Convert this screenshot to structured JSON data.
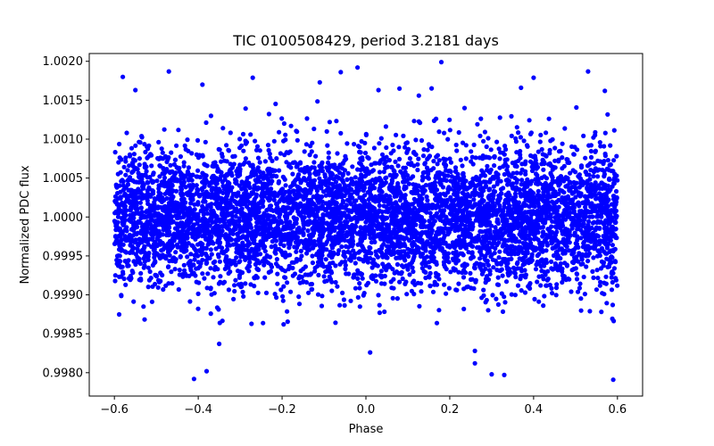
{
  "chart_data": {
    "type": "scatter",
    "title": "TIC 0100508429, period 3.2181 days",
    "xlabel": "Phase",
    "ylabel": "Normalized PDC flux",
    "xlim": [
      -0.66,
      0.66
    ],
    "ylim": [
      0.9977,
      1.0021
    ],
    "x_ticks": [
      -0.6,
      -0.4,
      -0.2,
      0.0,
      0.2,
      0.4,
      0.6
    ],
    "x_tick_labels": [
      "−0.6",
      "−0.4",
      "−0.2",
      "0.0",
      "0.2",
      "0.4",
      "0.6"
    ],
    "y_ticks": [
      0.998,
      0.9985,
      0.999,
      0.9995,
      1.0,
      1.0005,
      1.001,
      1.0015,
      1.002
    ],
    "y_tick_labels": [
      "0.9980",
      "0.9985",
      "0.9990",
      "0.9995",
      "1.0000",
      "1.0005",
      "1.0010",
      "1.0015",
      "1.0020"
    ],
    "grid": false,
    "marker_color": "#0000ff",
    "series": [
      {
        "name": "PDC flux",
        "phase_range": [
          -0.6,
          0.6
        ],
        "n_points": 6000,
        "center_flux": 1.0,
        "sigma_flux": 0.00045,
        "outliers": [
          {
            "x": -0.41,
            "y": 0.99792
          },
          {
            "x": -0.38,
            "y": 0.99802
          },
          {
            "x": 0.01,
            "y": 0.99826
          },
          {
            "x": 0.26,
            "y": 0.99828
          },
          {
            "x": 0.26,
            "y": 0.99812
          },
          {
            "x": 0.3,
            "y": 0.99798
          },
          {
            "x": 0.33,
            "y": 0.99797
          },
          {
            "x": 0.59,
            "y": 0.99791
          },
          {
            "x": -0.35,
            "y": 0.99837
          },
          {
            "x": 0.18,
            "y": 1.00199
          },
          {
            "x": -0.47,
            "y": 1.00187
          },
          {
            "x": 0.53,
            "y": 1.00187
          },
          {
            "x": -0.02,
            "y": 1.00192
          },
          {
            "x": -0.06,
            "y": 1.00186
          },
          {
            "x": -0.58,
            "y": 1.0018
          },
          {
            "x": -0.27,
            "y": 1.00179
          },
          {
            "x": 0.4,
            "y": 1.00179
          },
          {
            "x": -0.11,
            "y": 1.00173
          },
          {
            "x": -0.39,
            "y": 1.0017
          },
          {
            "x": 0.37,
            "y": 1.00166
          },
          {
            "x": 0.08,
            "y": 1.00165
          },
          {
            "x": -0.55,
            "y": 1.00163
          },
          {
            "x": 0.03,
            "y": 1.00163
          },
          {
            "x": 0.57,
            "y": 1.00162
          }
        ]
      }
    ]
  }
}
